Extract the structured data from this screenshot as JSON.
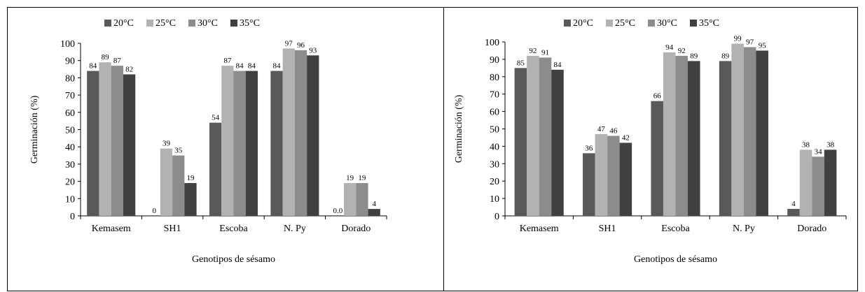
{
  "chart_data": [
    {
      "type": "bar",
      "title": "",
      "xlabel": "Genotipos de sésamo",
      "ylabel": "Germinación (%)",
      "ylim": [
        0,
        100
      ],
      "yticks": [
        0,
        10,
        20,
        30,
        40,
        50,
        60,
        70,
        80,
        90,
        100
      ],
      "grid": false,
      "legend": "top-center",
      "categories": [
        "Kemasem",
        "SH1",
        "Escoba",
        "N. Py",
        "Dorado"
      ],
      "series": [
        {
          "name": "20°C",
          "color": "#595959",
          "values": [
            84,
            0,
            54,
            84,
            0
          ],
          "labels": [
            "84",
            "0",
            "54",
            "84",
            "0.0"
          ]
        },
        {
          "name": "25°C",
          "color": "#b2b2b2",
          "values": [
            89,
            39,
            87,
            97,
            19
          ],
          "labels": [
            "89",
            "39",
            "87",
            "97",
            "19"
          ]
        },
        {
          "name": "30°C",
          "color": "#8c8c8c",
          "values": [
            87,
            35,
            84,
            96,
            19
          ],
          "labels": [
            "87",
            "35",
            "84",
            "96",
            "19"
          ]
        },
        {
          "name": "35°C",
          "color": "#404040",
          "values": [
            82,
            19,
            84,
            93,
            4
          ],
          "labels": [
            "82",
            "19",
            "84",
            "93",
            "4"
          ]
        }
      ]
    },
    {
      "type": "bar",
      "title": "",
      "xlabel": "Genotipos de sésamo",
      "ylabel": "Germinación (%)",
      "ylim": [
        0,
        100
      ],
      "yticks": [
        0,
        10,
        20,
        30,
        40,
        50,
        60,
        70,
        80,
        90,
        100
      ],
      "grid": false,
      "legend": "top-center",
      "categories": [
        "Kemasem",
        "SH1",
        "Escoba",
        "N. Py",
        "Dorado"
      ],
      "series": [
        {
          "name": "20°C",
          "color": "#595959",
          "values": [
            85,
            36,
            66,
            89,
            4
          ],
          "labels": [
            "85",
            "36",
            "66",
            "89",
            "4"
          ]
        },
        {
          "name": "25°C",
          "color": "#b2b2b2",
          "values": [
            92,
            47,
            94,
            99,
            38
          ],
          "labels": [
            "92",
            "47",
            "94",
            "99",
            "38"
          ]
        },
        {
          "name": "30°C",
          "color": "#8c8c8c",
          "values": [
            91,
            46,
            92,
            97,
            34
          ],
          "labels": [
            "91",
            "46",
            "92",
            "97",
            "34"
          ]
        },
        {
          "name": "35°C",
          "color": "#404040",
          "values": [
            84,
            42,
            89,
            95,
            38
          ],
          "labels": [
            "84",
            "42",
            "89",
            "95",
            "38"
          ]
        }
      ]
    }
  ]
}
